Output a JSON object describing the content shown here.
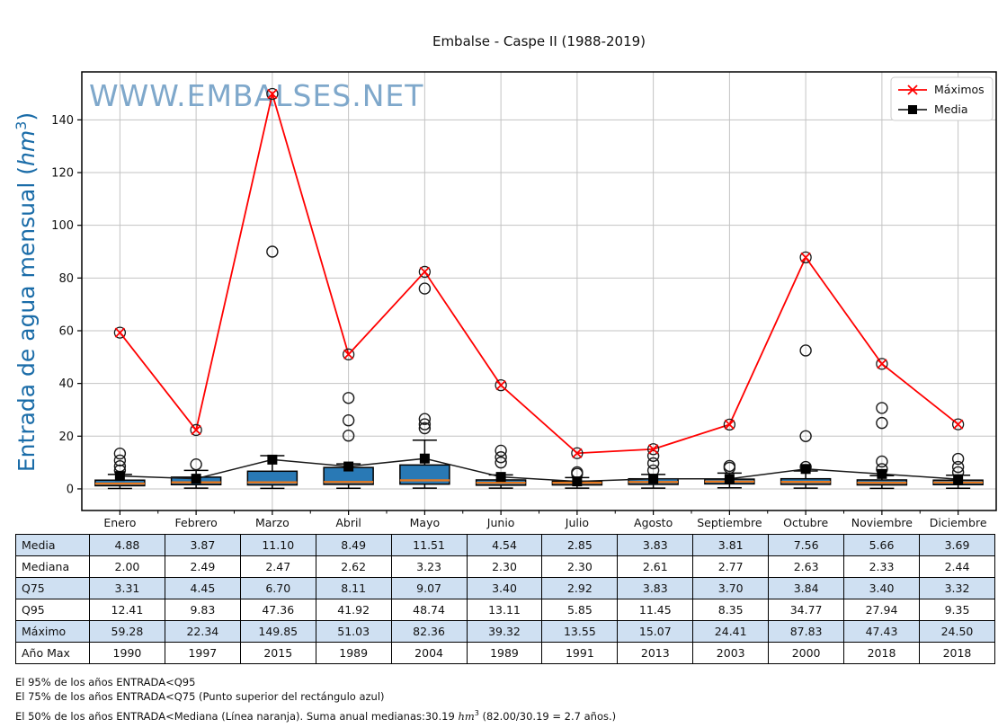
{
  "page": {
    "title": "Embalse - Caspe II (1988-2019)"
  },
  "chart_data": {
    "type": "box+line",
    "title": "Embalse - Caspe II (1988-2019)",
    "watermark": "WWW.EMBALSES.NET",
    "ylabel": {
      "text": "Entrada de agua mensual (",
      "unit": "hm",
      "exp": "3",
      "close": ")"
    },
    "categories": [
      "Enero",
      "Febrero",
      "Marzo",
      "Abril",
      "Mayo",
      "Junio",
      "Julio",
      "Agosto",
      "Septiembre",
      "Octubre",
      "Noviembre",
      "Diciembre"
    ],
    "y_ticks": [
      0,
      20,
      40,
      60,
      80,
      100,
      120,
      140
    ],
    "ylim": [
      -8.2,
      158.2
    ],
    "grid": true,
    "legend_position": "top-right",
    "legend": [
      {
        "label": "Máximos",
        "marker": "x",
        "color": "#ff0000"
      },
      {
        "label": "Media",
        "marker": "square",
        "color": "#000000"
      }
    ],
    "series": [
      {
        "name": "Máximos",
        "values": [
          59.28,
          22.34,
          149.85,
          51.03,
          82.36,
          39.32,
          13.55,
          15.07,
          24.41,
          87.83,
          47.43,
          24.5
        ]
      },
      {
        "name": "Media",
        "values": [
          4.88,
          3.87,
          11.1,
          8.49,
          11.51,
          4.54,
          2.85,
          3.83,
          3.81,
          7.56,
          5.66,
          3.69
        ]
      }
    ],
    "boxplots": {
      "median": [
        2.0,
        2.49,
        2.47,
        2.62,
        3.23,
        2.3,
        2.3,
        2.61,
        2.77,
        2.63,
        2.33,
        2.44
      ],
      "q1": [
        1.2,
        1.6,
        1.5,
        1.7,
        1.8,
        1.4,
        1.5,
        1.7,
        1.9,
        1.7,
        1.5,
        1.6
      ],
      "q3": [
        3.31,
        4.45,
        6.7,
        8.11,
        9.07,
        3.4,
        2.92,
        3.83,
        3.7,
        3.84,
        3.4,
        3.32
      ],
      "whisker_low": [
        0.15,
        0.3,
        0.2,
        0.25,
        0.3,
        0.3,
        0.3,
        0.3,
        0.4,
        0.3,
        0.2,
        0.25
      ],
      "whisker_high": [
        5.5,
        7.0,
        12.6,
        9.5,
        18.5,
        5.3,
        4.3,
        5.5,
        6.0,
        6.8,
        5.0,
        5.2
      ],
      "outliers": [
        [
          13.4,
          10.8,
          8.6,
          7.0
        ],
        [
          9.3
        ],
        [
          90.0
        ],
        [
          34.5,
          26.0,
          20.2
        ],
        [
          76.0,
          26.5,
          24.5,
          23.0
        ],
        [
          14.5,
          12.0,
          10.0
        ],
        [
          6.3,
          5.7
        ],
        [
          12.5,
          9.7,
          7.0
        ],
        [
          8.7,
          8.0
        ],
        [
          52.5,
          20.0,
          8.3
        ],
        [
          30.7,
          25.0,
          10.4,
          7.5
        ],
        [
          11.4,
          8.3,
          6.3
        ]
      ]
    },
    "colors": {
      "box_fill": "#2979b5",
      "median_line": "#e8791e",
      "max_line": "#ff0000",
      "mean_line": "#1a1a1a",
      "grid": "#c3c3c3",
      "watermark": "#7fa8cb",
      "ylabel": "#1a6ca8",
      "table_stripe": "#cfe0f2"
    }
  },
  "table": {
    "row_headers": [
      "Media",
      "Mediana",
      "Q75",
      "Q95",
      "Máximo",
      "Año Max"
    ],
    "rows": [
      [
        "4.88",
        "3.87",
        "11.10",
        "8.49",
        "11.51",
        "4.54",
        "2.85",
        "3.83",
        "3.81",
        "7.56",
        "5.66",
        "3.69"
      ],
      [
        "2.00",
        "2.49",
        "2.47",
        "2.62",
        "3.23",
        "2.30",
        "2.30",
        "2.61",
        "2.77",
        "2.63",
        "2.33",
        "2.44"
      ],
      [
        "3.31",
        "4.45",
        "6.70",
        "8.11",
        "9.07",
        "3.40",
        "2.92",
        "3.83",
        "3.70",
        "3.84",
        "3.40",
        "3.32"
      ],
      [
        "12.41",
        "9.83",
        "47.36",
        "41.92",
        "48.74",
        "13.11",
        "5.85",
        "11.45",
        "8.35",
        "34.77",
        "27.94",
        "9.35"
      ],
      [
        "59.28",
        "22.34",
        "149.85",
        "51.03",
        "82.36",
        "39.32",
        "13.55",
        "15.07",
        "24.41",
        "87.83",
        "47.43",
        "24.50"
      ],
      [
        "1990",
        "1997",
        "2015",
        "1989",
        "2004",
        "1989",
        "1991",
        "2013",
        "2003",
        "2000",
        "2018",
        "2018"
      ]
    ]
  },
  "footnotes": {
    "line1": "El 95% de los años ENTRADA<Q95",
    "line2": "El 75% de los años ENTRADA<Q75 (Punto superior del rectángulo azul)",
    "line3_before": "El 50% de los años ENTRADA<Mediana (Línea naranja). Suma anual medianas:30.19 ",
    "line3_unit": "hm",
    "line3_exp": "3",
    "line3_after": " (82.00/30.19 = 2.7 años.)"
  }
}
